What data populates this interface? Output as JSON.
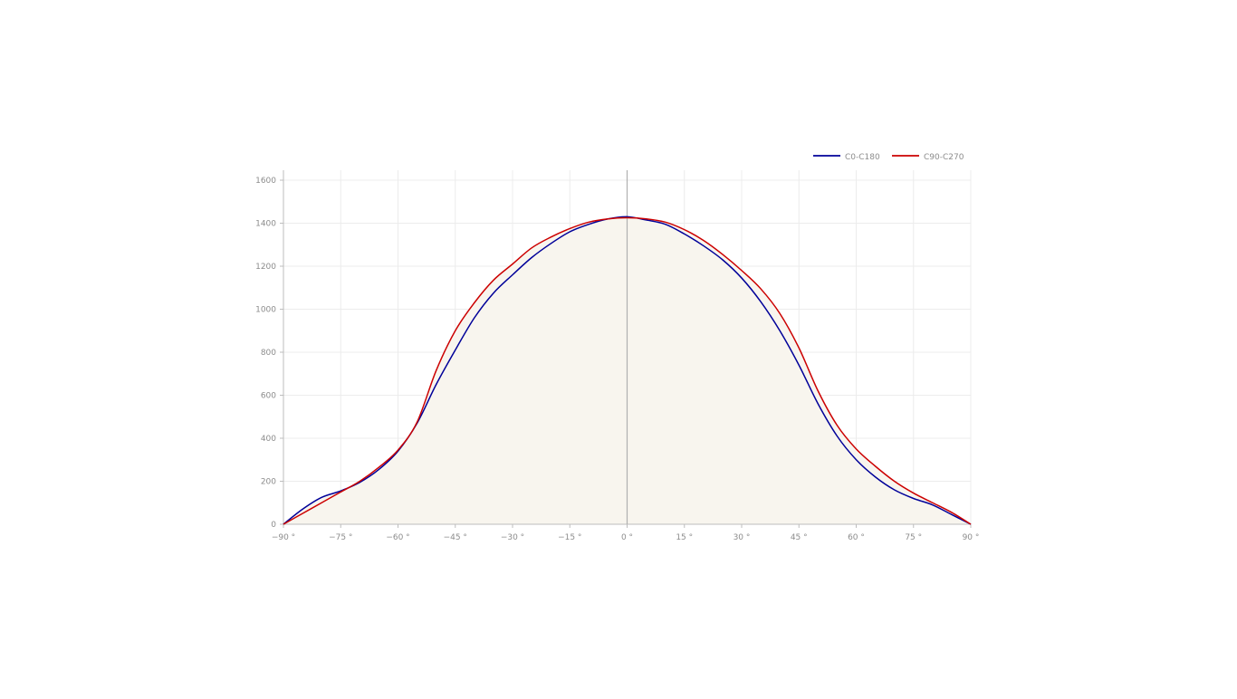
{
  "chart_data": {
    "type": "line",
    "title": "",
    "xlabel": "",
    "ylabel": "",
    "xlim": [
      -90,
      90
    ],
    "ylim": [
      0,
      1650
    ],
    "grid": true,
    "legend_position": "top-right",
    "area_fill": "#f8f5ee",
    "x_ticks": [
      -90,
      -75,
      -60,
      -45,
      -30,
      -15,
      0,
      15,
      30,
      45,
      60,
      75,
      90
    ],
    "x_tick_labels": [
      "−90 °",
      "−75 °",
      "−60 °",
      "−45 °",
      "−30 °",
      "−15 °",
      "0 °",
      "15 °",
      "30 °",
      "45 °",
      "60 °",
      "75 °",
      "90 °"
    ],
    "y_ticks": [
      0,
      200,
      400,
      600,
      800,
      1000,
      1200,
      1400,
      1600
    ],
    "y_tick_labels": [
      "0",
      "200",
      "400",
      "600",
      "800",
      "1000",
      "1200",
      "1400",
      "1600"
    ],
    "x": [
      -90,
      -85,
      -80,
      -75,
      -70,
      -65,
      -60,
      -55,
      -50,
      -45,
      -40,
      -35,
      -30,
      -25,
      -20,
      -15,
      -10,
      -5,
      0,
      5,
      10,
      15,
      20,
      25,
      30,
      35,
      40,
      45,
      50,
      55,
      60,
      65,
      70,
      75,
      80,
      85,
      90
    ],
    "series": [
      {
        "name": "C0-C180",
        "color": "#000099",
        "values": [
          0,
          70,
          125,
          155,
          195,
          255,
          340,
          470,
          650,
          810,
          960,
          1075,
          1160,
          1240,
          1305,
          1360,
          1395,
          1420,
          1430,
          1415,
          1395,
          1350,
          1295,
          1230,
          1145,
          1035,
          900,
          740,
          560,
          410,
          300,
          220,
          160,
          120,
          90,
          45,
          0
        ]
      },
      {
        "name": "C90-C270",
        "color": "#cc0000",
        "values": [
          0,
          50,
          100,
          150,
          200,
          265,
          345,
          475,
          715,
          900,
          1030,
          1135,
          1210,
          1285,
          1335,
          1375,
          1405,
          1420,
          1425,
          1420,
          1405,
          1370,
          1320,
          1255,
          1180,
          1095,
          980,
          820,
          620,
          460,
          350,
          270,
          200,
          145,
          100,
          55,
          0
        ]
      }
    ]
  }
}
